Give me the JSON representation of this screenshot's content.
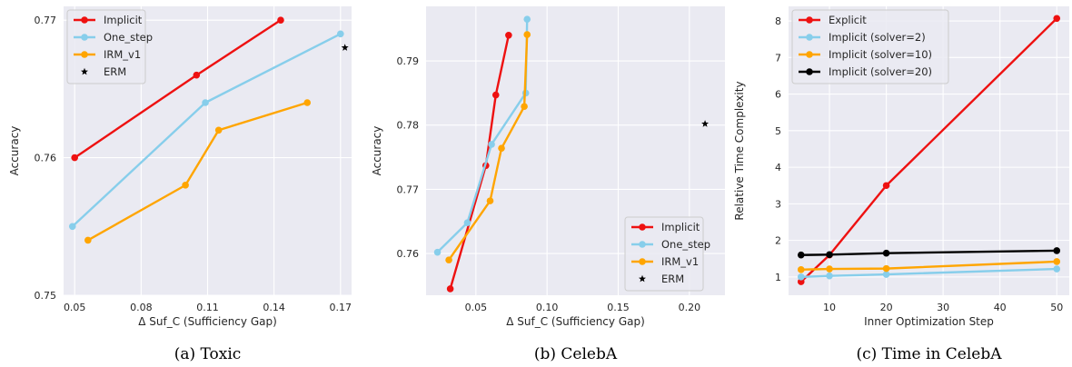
{
  "chart_data": [
    {
      "type": "line",
      "caption": "(a)  Toxic",
      "xlabel": "Δ Suf_C (Sufficiency Gap)",
      "ylabel": "Accuracy",
      "xlim": [
        0.045,
        0.175
      ],
      "ylim": [
        0.75,
        0.771
      ],
      "xticks": [
        0.05,
        0.08,
        0.11,
        0.14,
        0.17
      ],
      "xticklabels": [
        "0.05",
        "0.08",
        "0.11",
        "0.14",
        "0.17"
      ],
      "yticks": [
        0.75,
        0.76,
        0.77
      ],
      "yticklabels": [
        "0.75",
        "0.76",
        "0.77"
      ],
      "legend_position": "top-left",
      "series": [
        {
          "name": "Implicit",
          "color": "#ee1111",
          "marker": "circle",
          "points": [
            [
              0.05,
              0.76
            ],
            [
              0.105,
              0.766
            ],
            [
              0.143,
              0.77
            ]
          ]
        },
        {
          "name": "One_step",
          "color": "#87ceeb",
          "marker": "circle",
          "points": [
            [
              0.049,
              0.755
            ],
            [
              0.109,
              0.764
            ],
            [
              0.17,
              0.769
            ]
          ]
        },
        {
          "name": "IRM_v1",
          "color": "#ffa500",
          "marker": "circle",
          "points": [
            [
              0.056,
              0.754
            ],
            [
              0.1,
              0.758
            ],
            [
              0.115,
              0.762
            ],
            [
              0.155,
              0.764
            ]
          ]
        },
        {
          "name": "ERM",
          "color": "#000000",
          "marker": "star",
          "points": [
            [
              0.172,
              0.768
            ]
          ]
        }
      ]
    },
    {
      "type": "line",
      "caption": "(b)  CelebA",
      "xlabel": "Δ Suf_C (Sufficiency Gap)",
      "ylabel": "Accuracy",
      "xlim": [
        0.015,
        0.225
      ],
      "ylim": [
        0.7535,
        0.7985
      ],
      "xticks": [
        0.05,
        0.1,
        0.15,
        0.2
      ],
      "xticklabels": [
        "0.05",
        "0.10",
        "0.15",
        "0.20"
      ],
      "yticks": [
        0.76,
        0.77,
        0.78,
        0.79
      ],
      "yticklabels": [
        "0.76",
        "0.77",
        "0.78",
        "0.79"
      ],
      "legend_position": "bottom-right",
      "series": [
        {
          "name": "Implicit",
          "color": "#ee1111",
          "marker": "circle",
          "points": [
            [
              0.032,
              0.7545
            ],
            [
              0.057,
              0.7737
            ],
            [
              0.064,
              0.7847
            ],
            [
              0.073,
              0.794
            ]
          ]
        },
        {
          "name": "One_step",
          "color": "#87ceeb",
          "marker": "circle",
          "points": [
            [
              0.023,
              0.7602
            ],
            [
              0.044,
              0.7648
            ],
            [
              0.061,
              0.777
            ],
            [
              0.085,
              0.785
            ],
            [
              0.086,
              0.7965
            ]
          ]
        },
        {
          "name": "IRM_v1",
          "color": "#ffa500",
          "marker": "circle",
          "points": [
            [
              0.031,
              0.759
            ],
            [
              0.06,
              0.7682
            ],
            [
              0.068,
              0.7764
            ],
            [
              0.084,
              0.7829
            ],
            [
              0.086,
              0.7941
            ]
          ]
        },
        {
          "name": "ERM",
          "color": "#000000",
          "marker": "star",
          "points": [
            [
              0.211,
              0.7802
            ]
          ]
        }
      ]
    },
    {
      "type": "line",
      "caption": "(c)  Time in CelebA",
      "xlabel": "Inner Optimization Step",
      "ylabel": "Relative Time Complexity",
      "xlim": [
        2.8,
        52.2
      ],
      "ylim": [
        0.5,
        8.4
      ],
      "xticks": [
        10,
        20,
        30,
        40,
        50
      ],
      "xticklabels": [
        "10",
        "20",
        "30",
        "40",
        "50"
      ],
      "yticks": [
        1,
        2,
        3,
        4,
        5,
        6,
        7,
        8
      ],
      "yticklabels": [
        "1",
        "2",
        "3",
        "4",
        "5",
        "6",
        "7",
        "8"
      ],
      "legend_position": "top-left",
      "series": [
        {
          "name": "Explicit",
          "color": "#ee1111",
          "marker": "circle",
          "points": [
            [
              5,
              0.87
            ],
            [
              10,
              1.6
            ],
            [
              20,
              3.5
            ],
            [
              50,
              8.07
            ]
          ]
        },
        {
          "name": "Implicit (solver=2)",
          "color": "#87ceeb",
          "marker": "circle",
          "points": [
            [
              5,
              1.0
            ],
            [
              10,
              1.03
            ],
            [
              20,
              1.07
            ],
            [
              50,
              1.22
            ]
          ]
        },
        {
          "name": "Implicit (solver=10)",
          "color": "#ffa500",
          "marker": "circle",
          "points": [
            [
              5,
              1.2
            ],
            [
              10,
              1.22
            ],
            [
              20,
              1.23
            ],
            [
              50,
              1.42
            ]
          ]
        },
        {
          "name": "Implicit (solver=20)",
          "color": "#000000",
          "marker": "circle",
          "points": [
            [
              5,
              1.6
            ],
            [
              10,
              1.61
            ],
            [
              20,
              1.65
            ],
            [
              50,
              1.72
            ]
          ]
        }
      ]
    }
  ]
}
